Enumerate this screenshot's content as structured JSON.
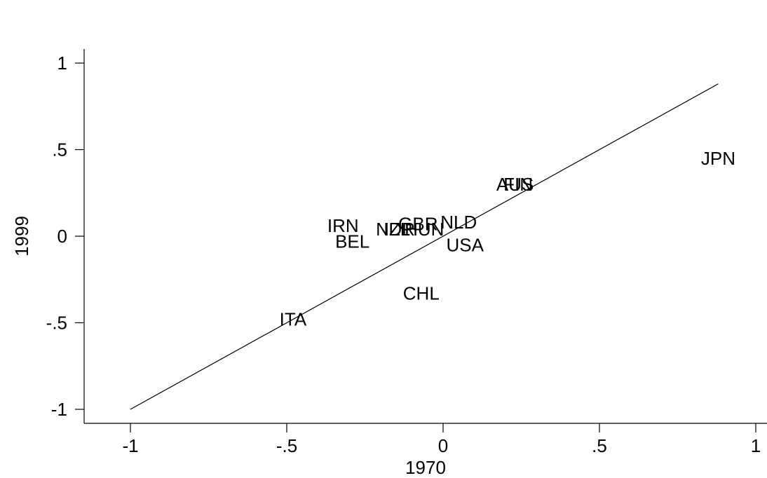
{
  "chart_data": {
    "type": "scatter",
    "title": "",
    "xlabel": "1970",
    "ylabel": "1999",
    "xlim": [
      -1.15,
      1.03
    ],
    "ylim": [
      -1.08,
      1.08
    ],
    "x_ticks": [
      -1,
      -0.5,
      0,
      0.5,
      1
    ],
    "x_tick_labels": [
      "-1",
      "-.5",
      "0",
      ".5",
      "1"
    ],
    "y_ticks": [
      -1,
      -0.5,
      0,
      0.5,
      1
    ],
    "y_tick_labels": [
      "-1",
      "-.5",
      "0",
      ".5",
      "1"
    ],
    "grid": false,
    "legend": "none",
    "points": [
      {
        "label": "JPN",
        "x": 0.88,
        "y": 0.45
      },
      {
        "label": "AUS",
        "x": 0.23,
        "y": 0.3
      },
      {
        "label": "FIN",
        "x": 0.24,
        "y": 0.3
      },
      {
        "label": "IRN",
        "x": -0.32,
        "y": 0.06
      },
      {
        "label": "NZL",
        "x": -0.16,
        "y": 0.04
      },
      {
        "label": "IDR",
        "x": -0.14,
        "y": 0.04
      },
      {
        "label": "GBR",
        "x": -0.08,
        "y": 0.07
      },
      {
        "label": "NLD",
        "x": 0.05,
        "y": 0.08
      },
      {
        "label": "HUN",
        "x": -0.06,
        "y": 0.04
      },
      {
        "label": "BEL",
        "x": -0.29,
        "y": -0.03
      },
      {
        "label": "USA",
        "x": 0.07,
        "y": -0.05
      },
      {
        "label": "CHL",
        "x": -0.07,
        "y": -0.33
      },
      {
        "label": "ITA",
        "x": -0.48,
        "y": -0.48
      }
    ],
    "fit_line": {
      "x": [
        -1,
        0.88
      ],
      "y": [
        -1,
        0.88
      ]
    }
  }
}
